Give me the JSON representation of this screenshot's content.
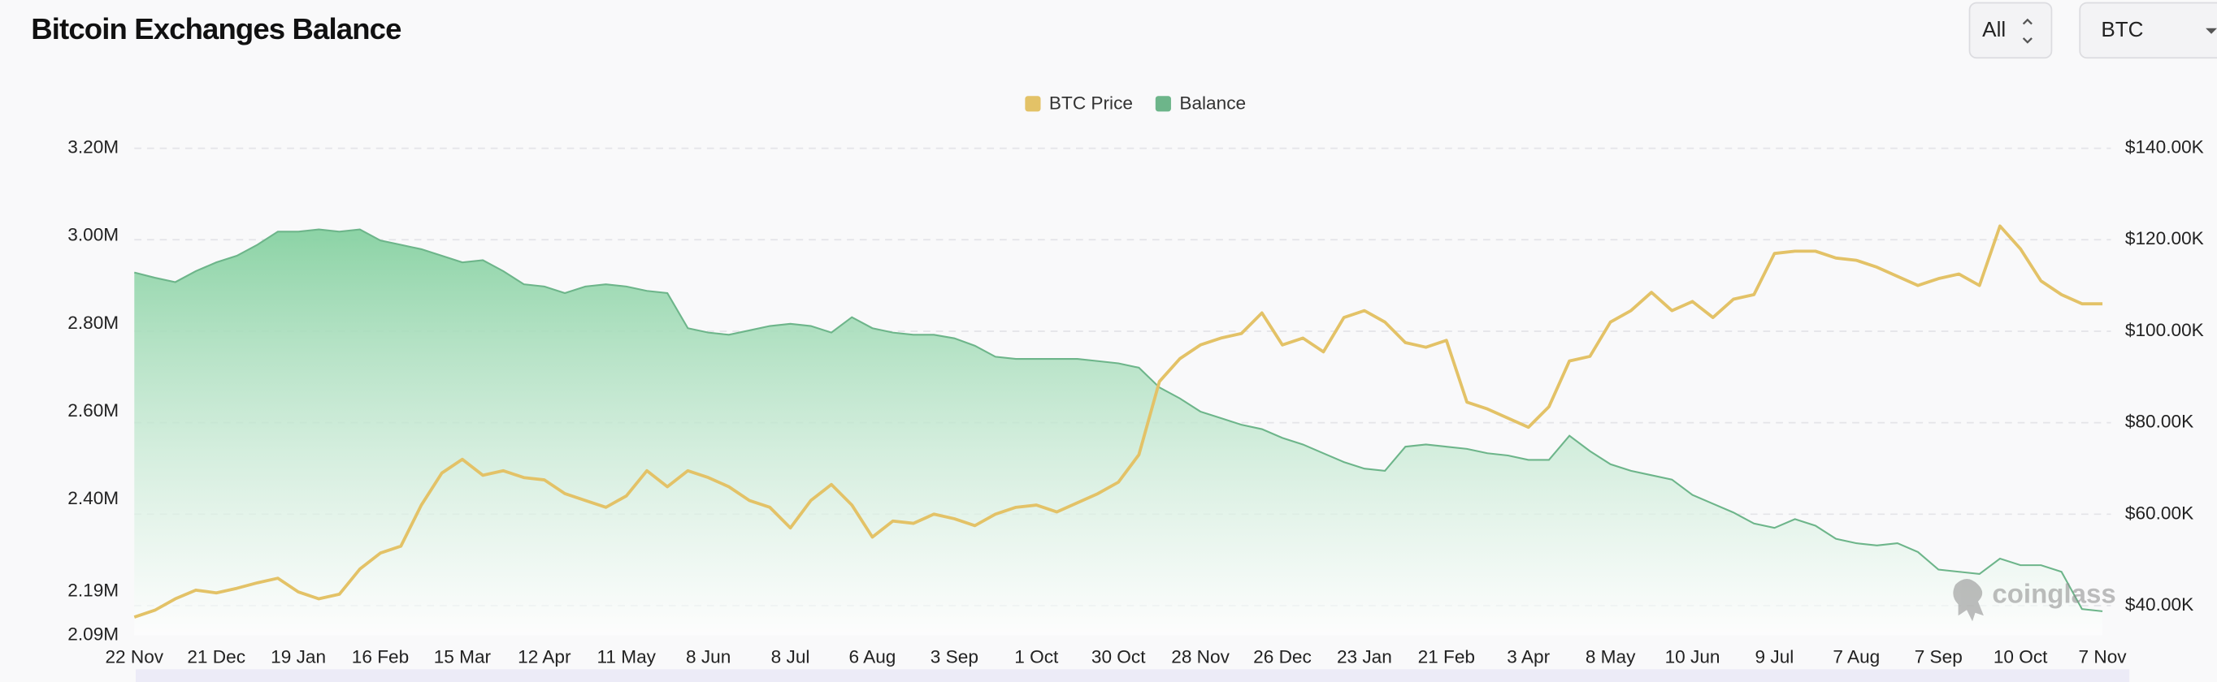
{
  "header": {
    "title": "Bitcoin Exchanges Balance",
    "range": "All",
    "coin": "BTC"
  },
  "watermark": "coinglass",
  "chart_data": {
    "type": "area",
    "categories": [
      "22 Nov",
      null,
      null,
      null,
      "21 Dec",
      null,
      null,
      null,
      "19 Jan",
      null,
      null,
      null,
      "16 Feb",
      null,
      null,
      null,
      "15 Mar",
      null,
      null,
      null,
      "12 Apr",
      null,
      null,
      null,
      "11 May",
      null,
      null,
      null,
      "8 Jun",
      null,
      null,
      null,
      "8 Jul",
      null,
      null,
      null,
      "6 Aug",
      null,
      null,
      null,
      "3 Sep",
      null,
      null,
      null,
      "1 Oct",
      null,
      null,
      null,
      "30 Oct",
      null,
      null,
      null,
      "28 Nov",
      null,
      null,
      null,
      "26 Dec",
      null,
      null,
      null,
      "23 Jan",
      null,
      null,
      null,
      "21 Feb",
      null,
      null,
      null,
      "3 Apr",
      null,
      null,
      null,
      "8 May",
      null,
      null,
      null,
      "10 Jun",
      null,
      null,
      null,
      "9 Jul",
      null,
      null,
      null,
      "7 Aug",
      null,
      null,
      null,
      "7 Sep",
      null,
      null,
      null,
      "10 Oct",
      null,
      null,
      null,
      "7 Nov"
    ],
    "series": [
      {
        "name": "BTC Price",
        "type": "line",
        "axis": "y2",
        "color": "#e3c267",
        "values": [
          37500,
          39000,
          41500,
          43400,
          42800,
          43800,
          45000,
          46000,
          43000,
          41500,
          42500,
          48000,
          51500,
          53000,
          62000,
          69000,
          72000,
          68500,
          69500,
          68000,
          67500,
          64500,
          63000,
          61500,
          64000,
          69500,
          66000,
          69500,
          68000,
          66000,
          63000,
          61500,
          57000,
          63000,
          66500,
          62000,
          55000,
          58500,
          58000,
          60000,
          59000,
          57500,
          60000,
          61500,
          62000,
          60500,
          62500,
          64500,
          67000,
          73000,
          89000,
          94000,
          97000,
          98500,
          99500,
          104000,
          97000,
          98500,
          95500,
          103000,
          104500,
          102000,
          97500,
          96500,
          98000,
          84500,
          83000,
          81000,
          79000,
          83500,
          93500,
          94500,
          102000,
          104500,
          108500,
          104500,
          106500,
          103000,
          107000,
          108000,
          117000,
          117500,
          117500,
          116000,
          115500,
          114000,
          112000,
          110000,
          111500,
          112500,
          110000,
          123000,
          118000,
          111000,
          108000,
          106000,
          106000
        ]
      },
      {
        "name": "Balance",
        "type": "area",
        "axis": "y",
        "color": "#6db58a",
        "values": [
          2917000,
          2905000,
          2895000,
          2920000,
          2940000,
          2955000,
          2980000,
          3010000,
          3010000,
          3015000,
          3010000,
          3015000,
          2990000,
          2980000,
          2970000,
          2955000,
          2940000,
          2945000,
          2920000,
          2890000,
          2885000,
          2870000,
          2885000,
          2890000,
          2885000,
          2875000,
          2870000,
          2790000,
          2780000,
          2775000,
          2785000,
          2795000,
          2800000,
          2795000,
          2780000,
          2815000,
          2790000,
          2780000,
          2775000,
          2775000,
          2767000,
          2750000,
          2725000,
          2720000,
          2720000,
          2720000,
          2720000,
          2715000,
          2710000,
          2700000,
          2655000,
          2630000,
          2600000,
          2585000,
          2570000,
          2560000,
          2540000,
          2525000,
          2505000,
          2485000,
          2470000,
          2465000,
          2520000,
          2525000,
          2520000,
          2515000,
          2505000,
          2500000,
          2490000,
          2490000,
          2545000,
          2510000,
          2480000,
          2465000,
          2455000,
          2445000,
          2410000,
          2390000,
          2370000,
          2345000,
          2335000,
          2355000,
          2340000,
          2310000,
          2300000,
          2295000,
          2300000,
          2280000,
          2240000,
          2235000,
          2230000,
          2265000,
          2250000,
          2250000,
          2235000,
          2150000,
          2145000
        ]
      }
    ],
    "ylim": [
      2090000,
      3200000
    ],
    "yticks": [
      {
        "value": 2090000,
        "label": "2.09M"
      },
      {
        "value": 2190000,
        "label": "2.19M"
      },
      {
        "value": 2400000,
        "label": "2.40M"
      },
      {
        "value": 2600000,
        "label": "2.60M"
      },
      {
        "value": 2800000,
        "label": "2.80M"
      },
      {
        "value": 3000000,
        "label": "3.00M"
      },
      {
        "value": 3200000,
        "label": "3.20M"
      }
    ],
    "y2lim": [
      33500,
      140000
    ],
    "y2ticks": [
      {
        "value": 40000,
        "label": "$40.00K"
      },
      {
        "value": 60000,
        "label": "$60.00K"
      },
      {
        "value": 80000,
        "label": "$80.00K"
      },
      {
        "value": 100000,
        "label": "$100.00K"
      },
      {
        "value": 120000,
        "label": "$120.00K"
      },
      {
        "value": 140000,
        "label": "$140.00K"
      }
    ],
    "grid": true,
    "legend": "top"
  }
}
